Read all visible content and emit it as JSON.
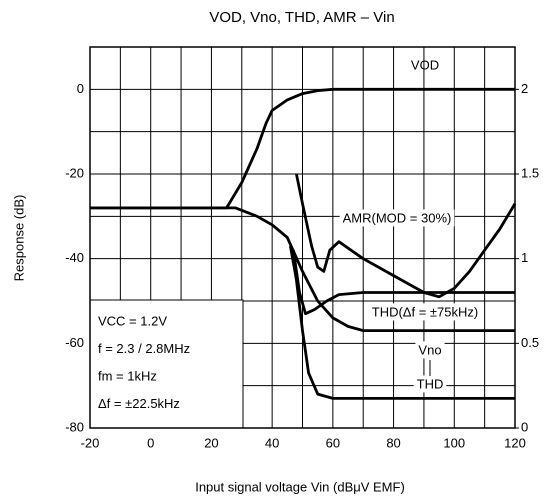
{
  "chart_data": {
    "type": "line",
    "title": "VOD, Vno, THD, AMR – Vin",
    "x_label": "Input signal voltage  Vin  (dBμV EMF)",
    "y_label": "Response  (dB)",
    "xlim": [
      -20,
      120
    ],
    "xticks": [
      -20,
      0,
      20,
      40,
      60,
      80,
      100,
      120
    ],
    "ylim": [
      -80,
      10
    ],
    "yticks": [
      -80,
      -60,
      -40,
      -20,
      0
    ],
    "y2lim": [
      0,
      2.25
    ],
    "y2ticks": [
      0,
      0.5,
      1,
      1.5,
      2
    ],
    "grid": true,
    "grid_x": [
      -20,
      -10,
      0,
      10,
      20,
      30,
      40,
      50,
      60,
      70,
      80,
      90,
      100,
      110,
      120
    ],
    "grid_y": [
      -80,
      -70,
      -60,
      -50,
      -40,
      -30,
      -20,
      -10,
      0,
      10
    ],
    "annotations": [
      "VCC = 1.2V",
      "f = 2.3 / 2.8MHz",
      "fm = 1kHz",
      "Δf = ±22.5kHz"
    ],
    "series": [
      {
        "name": "VOD",
        "color": "#000000",
        "x": [
          -20,
          25,
          30,
          35,
          38,
          40,
          45,
          50,
          55,
          60,
          120
        ],
        "values": [
          -28,
          -28,
          -22,
          -14,
          -8,
          -5,
          -2.5,
          -1,
          -0.3,
          0,
          0
        ]
      },
      {
        "name": "Vno",
        "color": "#000000",
        "x": [
          -20,
          28,
          35,
          40,
          45,
          50,
          55,
          60,
          65,
          70,
          120
        ],
        "values": [
          -28,
          -28,
          -30,
          -32,
          -35,
          -43,
          -50,
          -54,
          -56,
          -57,
          -57
        ]
      },
      {
        "name": "THD(Δf = ±75kHz)",
        "color": "#000000",
        "x": [
          47,
          49,
          51,
          54,
          58,
          62,
          70,
          120
        ],
        "values": [
          -38,
          -48,
          -53,
          -52,
          -50,
          -48.5,
          -48,
          -48
        ]
      },
      {
        "name": "THD",
        "color": "#000000",
        "x": [
          46,
          48,
          50,
          52,
          55,
          60,
          120
        ],
        "values": [
          -37,
          -45,
          -57,
          -67,
          -72,
          -73,
          -73
        ]
      },
      {
        "name": "AMR(MOD = 30%)",
        "color": "#000000",
        "x": [
          48,
          50,
          53,
          55,
          57,
          59,
          62,
          70,
          80,
          90,
          95,
          100,
          105,
          110,
          115,
          120
        ],
        "values": [
          -20,
          -27,
          -37,
          -42,
          -43,
          -38,
          -36,
          -40,
          -44,
          -48,
          -49,
          -47,
          -43,
          -38,
          -33,
          -27
        ]
      }
    ]
  }
}
